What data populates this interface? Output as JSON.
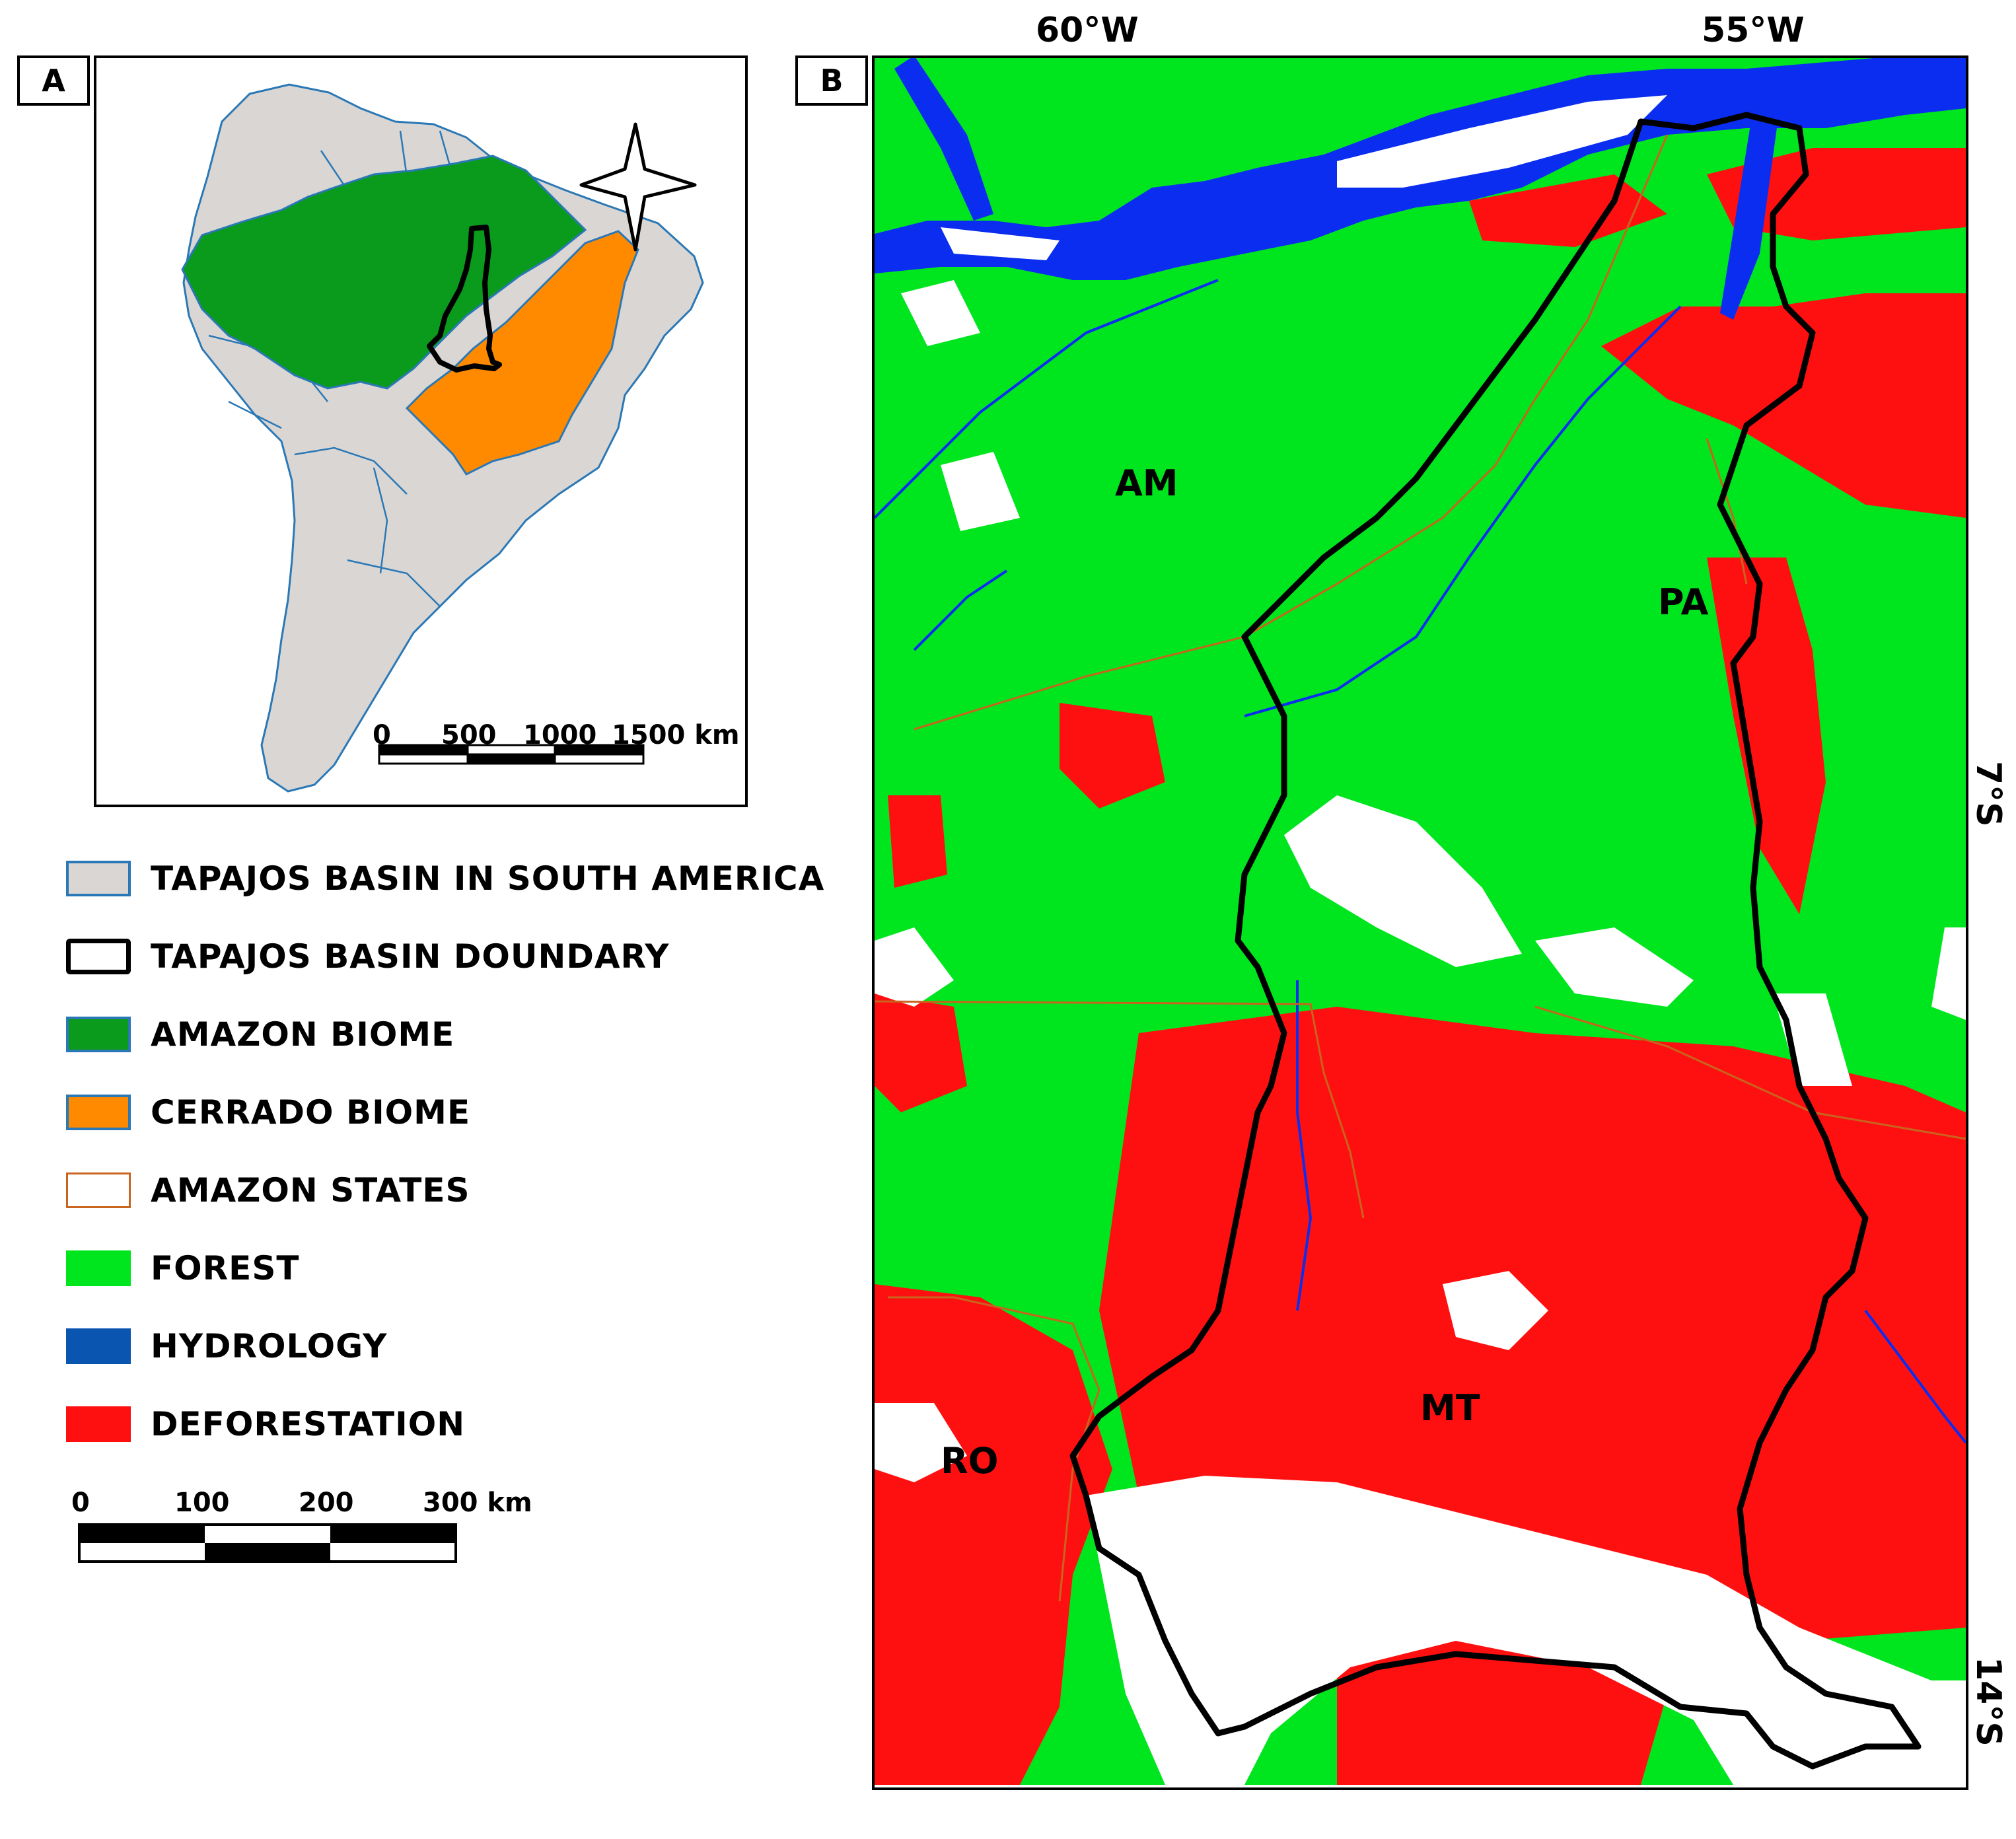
{
  "panel_a": {
    "label": "A"
  },
  "panel_b": {
    "label": "B"
  },
  "scale_a": {
    "ticks": [
      "0",
      "500",
      "1000",
      "1500 km"
    ]
  },
  "scale_b": {
    "ticks": [
      "0",
      "100",
      "200",
      "300 km"
    ]
  },
  "coordinates": {
    "lon_1": "60°W",
    "lon_2": "55°W",
    "lat_1": "7°S",
    "lat_2": "14°S"
  },
  "states": {
    "am": "AM",
    "pa": "PA",
    "mt": "MT",
    "ro": "RO"
  },
  "legend": [
    {
      "label": "TAPAJOS BASIN IN SOUTH AMERICA",
      "fill": "#d9d6d3",
      "stroke": "#2a78b6"
    },
    {
      "label": "TAPAJOS BASIN DOUNDARY",
      "fill": "#ffffff",
      "stroke": "#000000"
    },
    {
      "label": "AMAZON BIOME",
      "fill": "#0a9a1c",
      "stroke": "#2a78b6"
    },
    {
      "label": "CERRADO BIOME",
      "fill": "#ff8a00",
      "stroke": "#2a78b6"
    },
    {
      "label": "AMAZON STATES",
      "fill": "#ffffff",
      "stroke": "#c8641e"
    },
    {
      "label": "FOREST",
      "fill": "#00e61e",
      "stroke": "#00e61e"
    },
    {
      "label": "HYDROLOGY",
      "fill": "#0a55b0",
      "stroke": "#0a55b0"
    },
    {
      "label": "DEFORESTATION",
      "fill": "#ff1010",
      "stroke": "#ff1010"
    }
  ],
  "colors": {
    "land": "#d9d6d3",
    "amazon": "#0a9a1c",
    "cerrado": "#ff8a00",
    "borders": "#2a78b6",
    "forest": "#00e61e",
    "deforestation": "#ff1010",
    "water": "#0a2df0",
    "bare": "#ffffff",
    "states": "#c8641e"
  }
}
